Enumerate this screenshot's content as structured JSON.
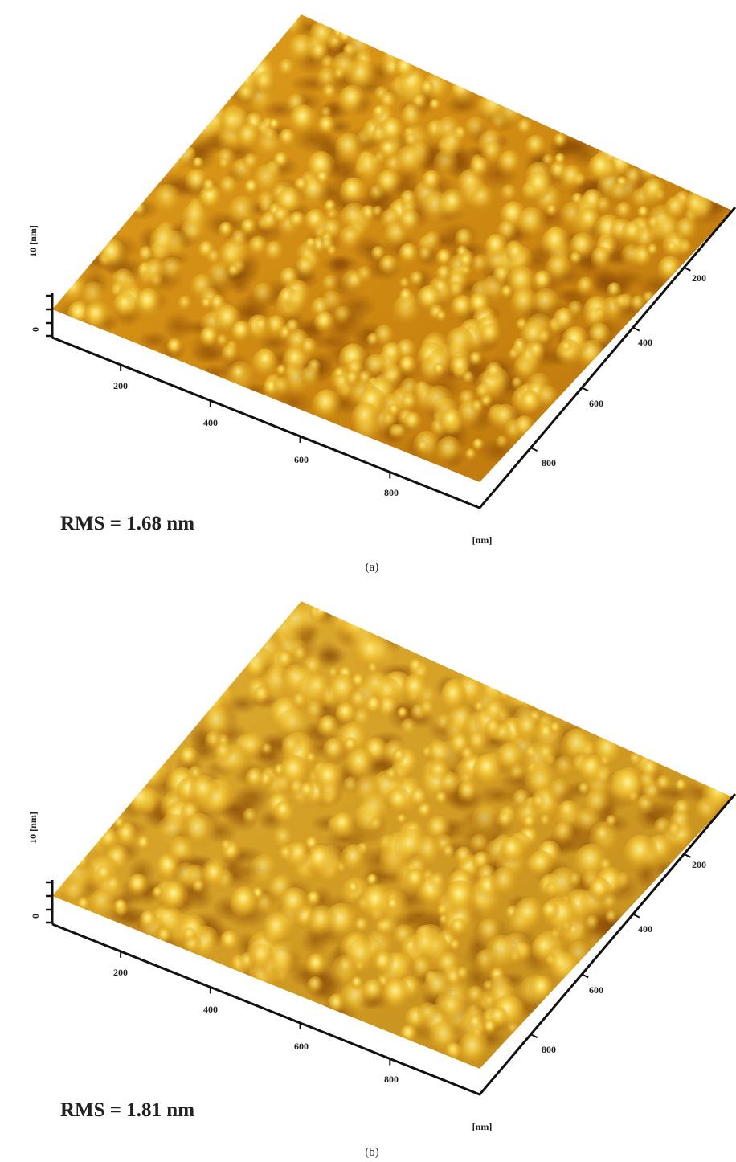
{
  "panels": [
    {
      "z_axis_label": "10 [nm]",
      "z_zero": "0",
      "x_ticks": [
        "200",
        "400",
        "600",
        "800"
      ],
      "y_ticks": [
        "200",
        "400",
        "600",
        "800"
      ],
      "unit_label": "[nm]",
      "rms": "RMS = 1.68 nm",
      "caption": "(a)"
    },
    {
      "z_axis_label": "10 [nm]",
      "z_zero": "0",
      "x_ticks": [
        "200",
        "400",
        "600",
        "800"
      ],
      "y_ticks": [
        "200",
        "400",
        "600",
        "800"
      ],
      "unit_label": "[nm]",
      "rms": "RMS = 1.81 nm",
      "caption": "(b)"
    }
  ]
}
